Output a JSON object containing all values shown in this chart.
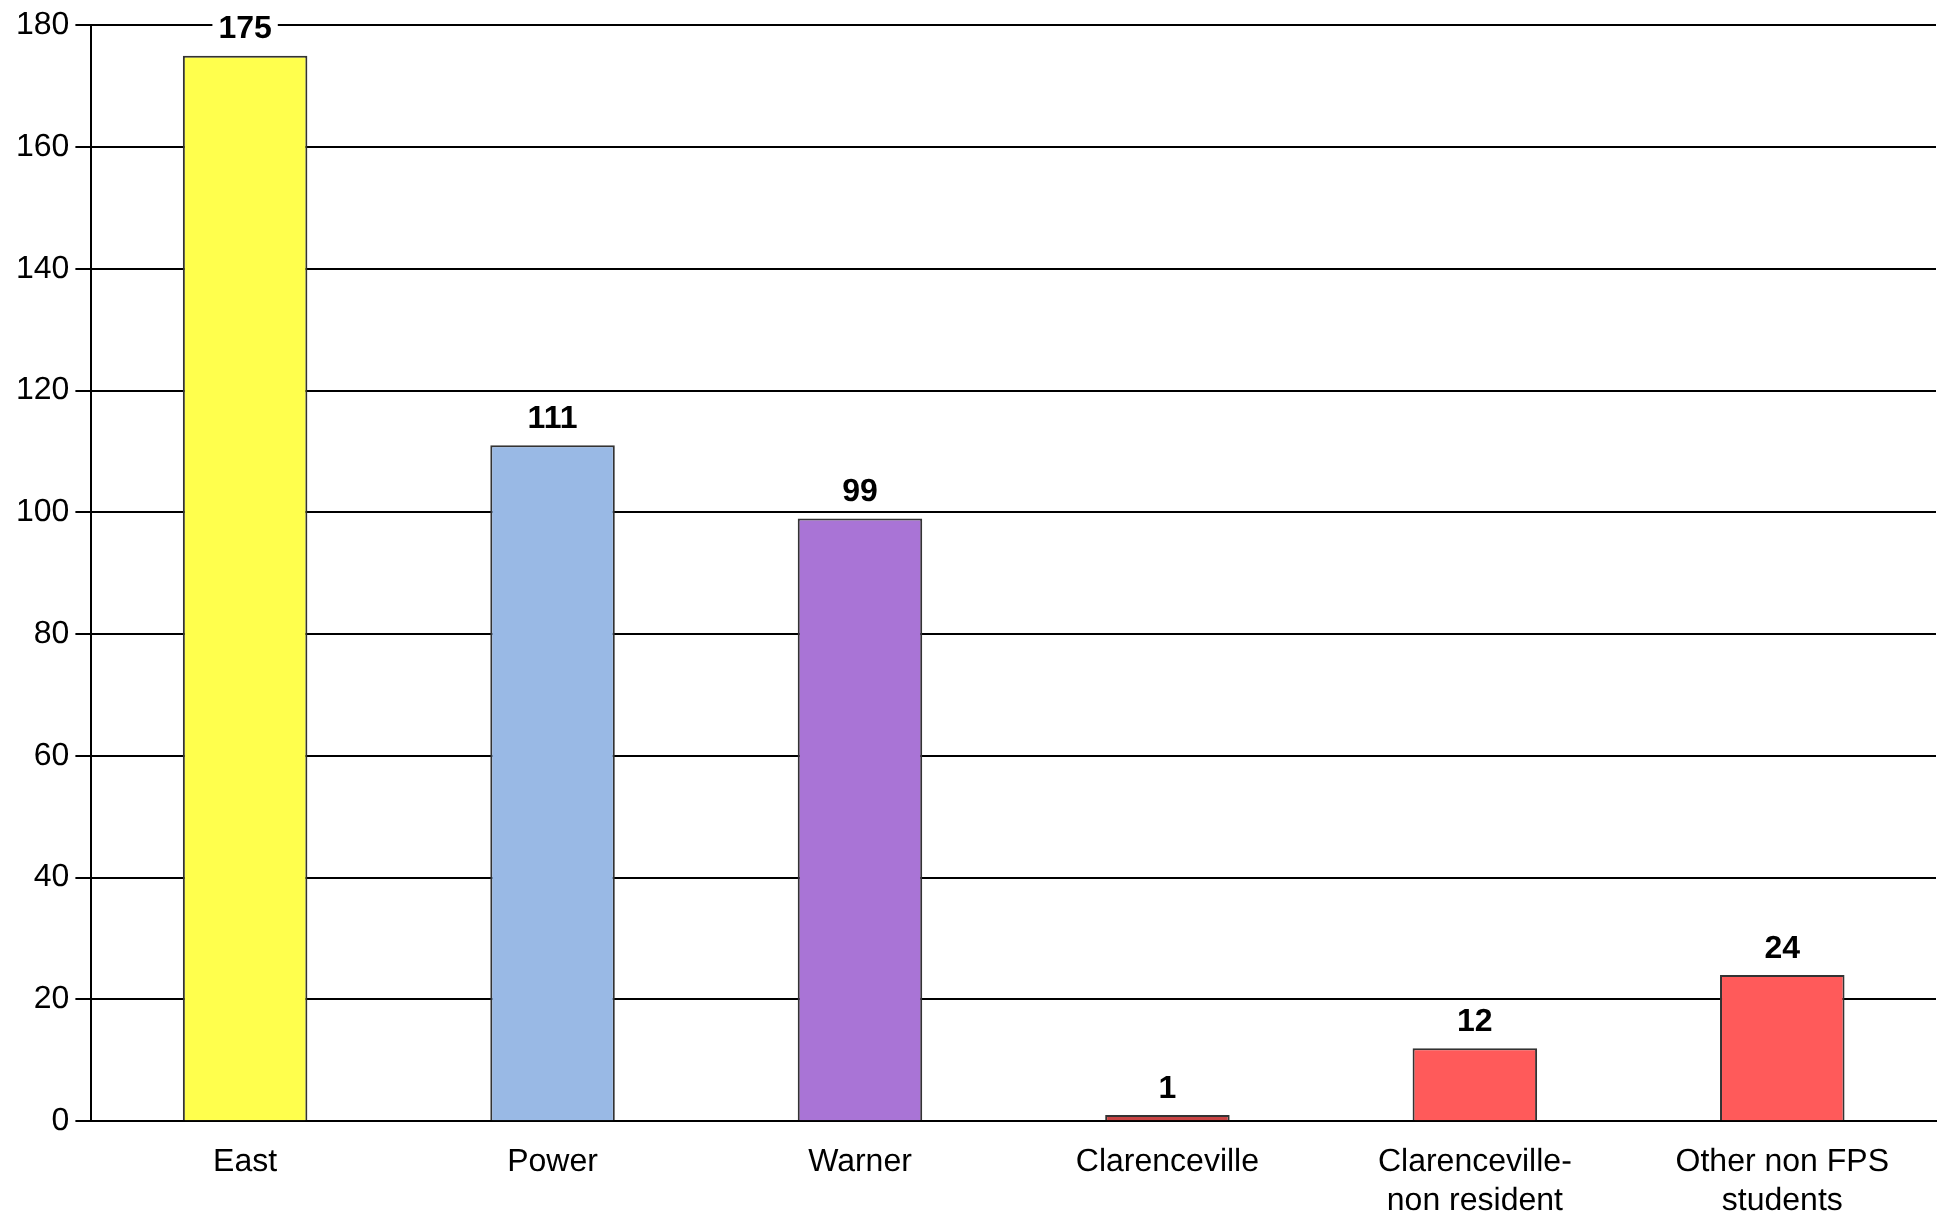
{
  "chart_data": {
    "type": "bar",
    "categories": [
      "East",
      "Power",
      "Warner",
      "Clarenceville",
      "Clarenceville- non resident",
      "Other non FPS students"
    ],
    "values": [
      175,
      111,
      99,
      1,
      12,
      24
    ],
    "colors": [
      "#ffff4d",
      "#99b9e5",
      "#a974d6",
      "#c84444",
      "#ff5a5a",
      "#ff5a5a"
    ],
    "ylim": [
      0,
      180
    ],
    "yticks": [
      0,
      20,
      40,
      60,
      80,
      100,
      120,
      140,
      160,
      180
    ],
    "grid": "y",
    "data_labels": true
  }
}
